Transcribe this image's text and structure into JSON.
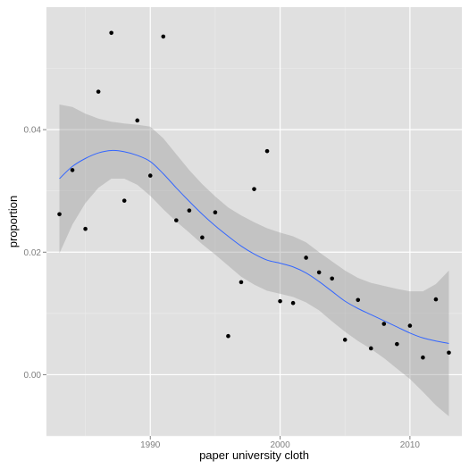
{
  "chart_data": {
    "type": "scatter",
    "title": "",
    "xlabel": "paper university cloth",
    "ylabel": "proportion",
    "xlim": [
      1982,
      2014
    ],
    "ylim": [
      -0.01,
      0.06
    ],
    "x_ticks": [
      1990,
      2000,
      2010
    ],
    "x_tick_labels": [
      "1990",
      "2000",
      "2010"
    ],
    "y_ticks": [
      0.0,
      0.02,
      0.04
    ],
    "y_tick_labels": [
      "0.00",
      "0.02",
      "0.04"
    ],
    "grid": true,
    "legend": "none",
    "colors": {
      "panel": "#e0e0e0",
      "grid_major": "#ffffff",
      "grid_minor": "#ebebeb",
      "points": "#000000",
      "smooth_line": "#3366ff",
      "ribbon": "#999999"
    },
    "points": [
      {
        "x": 1983,
        "y": 0.0262
      },
      {
        "x": 1984,
        "y": 0.0334
      },
      {
        "x": 1985,
        "y": 0.0238
      },
      {
        "x": 1986,
        "y": 0.0462
      },
      {
        "x": 1987,
        "y": 0.0558
      },
      {
        "x": 1988,
        "y": 0.0284
      },
      {
        "x": 1989,
        "y": 0.0415
      },
      {
        "x": 1990,
        "y": 0.0325
      },
      {
        "x": 1991,
        "y": 0.0552
      },
      {
        "x": 1992,
        "y": 0.0252
      },
      {
        "x": 1993,
        "y": 0.0268
      },
      {
        "x": 1994,
        "y": 0.0224
      },
      {
        "x": 1995,
        "y": 0.0265
      },
      {
        "x": 1996,
        "y": 0.0063
      },
      {
        "x": 1997,
        "y": 0.0151
      },
      {
        "x": 1998,
        "y": 0.0303
      },
      {
        "x": 1999,
        "y": 0.0365
      },
      {
        "x": 2000,
        "y": 0.012
      },
      {
        "x": 2001,
        "y": 0.0117
      },
      {
        "x": 2002,
        "y": 0.0191
      },
      {
        "x": 2003,
        "y": 0.0167
      },
      {
        "x": 2004,
        "y": 0.0157
      },
      {
        "x": 2005,
        "y": 0.0057
      },
      {
        "x": 2006,
        "y": 0.0122
      },
      {
        "x": 2007,
        "y": 0.0043
      },
      {
        "x": 2008,
        "y": 0.0083
      },
      {
        "x": 2009,
        "y": 0.005
      },
      {
        "x": 2010,
        "y": 0.008
      },
      {
        "x": 2011,
        "y": 0.0028
      },
      {
        "x": 2012,
        "y": 0.0123
      },
      {
        "x": 2013,
        "y": 0.0036
      }
    ],
    "smooth": [
      {
        "x": 1983,
        "y": 0.032,
        "lower": 0.0198,
        "upper": 0.0441
      },
      {
        "x": 1984,
        "y": 0.034,
        "lower": 0.0245,
        "upper": 0.0437
      },
      {
        "x": 1985,
        "y": 0.0353,
        "lower": 0.028,
        "upper": 0.0426
      },
      {
        "x": 1986,
        "y": 0.0362,
        "lower": 0.0305,
        "upper": 0.0418
      },
      {
        "x": 1987,
        "y": 0.0366,
        "lower": 0.032,
        "upper": 0.0413
      },
      {
        "x": 1988,
        "y": 0.0364,
        "lower": 0.032,
        "upper": 0.041
      },
      {
        "x": 1989,
        "y": 0.0358,
        "lower": 0.031,
        "upper": 0.0408
      },
      {
        "x": 1990,
        "y": 0.0348,
        "lower": 0.0292,
        "upper": 0.0405
      },
      {
        "x": 1991,
        "y": 0.0328,
        "lower": 0.027,
        "upper": 0.0386
      },
      {
        "x": 1992,
        "y": 0.0305,
        "lower": 0.025,
        "upper": 0.036
      },
      {
        "x": 1993,
        "y": 0.0283,
        "lower": 0.0232,
        "upper": 0.0334
      },
      {
        "x": 1994,
        "y": 0.0262,
        "lower": 0.0213,
        "upper": 0.0311
      },
      {
        "x": 1995,
        "y": 0.0243,
        "lower": 0.0196,
        "upper": 0.0291
      },
      {
        "x": 1996,
        "y": 0.0226,
        "lower": 0.0178,
        "upper": 0.0273
      },
      {
        "x": 1997,
        "y": 0.021,
        "lower": 0.016,
        "upper": 0.026
      },
      {
        "x": 1998,
        "y": 0.0197,
        "lower": 0.0147,
        "upper": 0.0249
      },
      {
        "x": 1999,
        "y": 0.0187,
        "lower": 0.0137,
        "upper": 0.0239
      },
      {
        "x": 2000,
        "y": 0.0182,
        "lower": 0.0132,
        "upper": 0.0232
      },
      {
        "x": 2001,
        "y": 0.0176,
        "lower": 0.0127,
        "upper": 0.0226
      },
      {
        "x": 2002,
        "y": 0.0166,
        "lower": 0.0118,
        "upper": 0.0216
      },
      {
        "x": 2003,
        "y": 0.0152,
        "lower": 0.0105,
        "upper": 0.02
      },
      {
        "x": 2004,
        "y": 0.0136,
        "lower": 0.0087,
        "upper": 0.0185
      },
      {
        "x": 2005,
        "y": 0.012,
        "lower": 0.007,
        "upper": 0.017
      },
      {
        "x": 2006,
        "y": 0.0108,
        "lower": 0.0055,
        "upper": 0.0158
      },
      {
        "x": 2007,
        "y": 0.0098,
        "lower": 0.0042,
        "upper": 0.015
      },
      {
        "x": 2008,
        "y": 0.0088,
        "lower": 0.0027,
        "upper": 0.0145
      },
      {
        "x": 2009,
        "y": 0.0078,
        "lower": 0.001,
        "upper": 0.014
      },
      {
        "x": 2010,
        "y": 0.0068,
        "lower": -0.0007,
        "upper": 0.0136
      },
      {
        "x": 2011,
        "y": 0.006,
        "lower": -0.0028,
        "upper": 0.0136
      },
      {
        "x": 2012,
        "y": 0.0055,
        "lower": -0.005,
        "upper": 0.0148
      },
      {
        "x": 2013,
        "y": 0.0051,
        "lower": -0.0068,
        "upper": 0.017
      }
    ]
  }
}
